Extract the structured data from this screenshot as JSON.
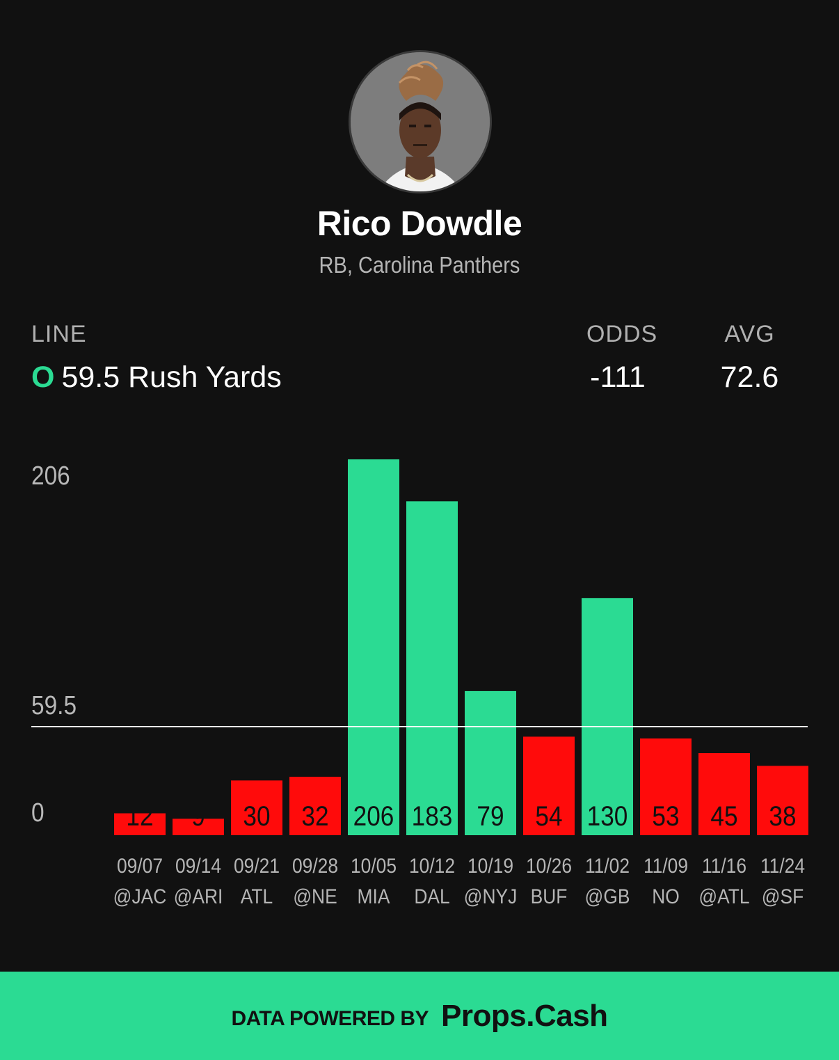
{
  "player": {
    "name": "Rico Dowdle",
    "subtitle": "RB, Carolina Panthers",
    "avatar_icon": "player-headshot"
  },
  "stats": {
    "line_label": "LINE",
    "line_direction": "O",
    "line_text": "59.5 Rush Yards",
    "odds_label": "ODDS",
    "odds_value": "-111",
    "avg_label": "AVG",
    "avg_value": "72.6"
  },
  "colors": {
    "background": "#111111",
    "over": "#2bdb93",
    "under": "#ff0b0b",
    "threshold_line": "#ffffff"
  },
  "chart_data": {
    "type": "bar",
    "title": "",
    "xlabel": "",
    "ylabel": "",
    "ylim": [
      0,
      206
    ],
    "y_ticks": [
      "206",
      "59.5",
      "0"
    ],
    "threshold": 59.5,
    "categories": [
      {
        "date": "09/07",
        "opponent": "@JAC"
      },
      {
        "date": "09/14",
        "opponent": "@ARI"
      },
      {
        "date": "09/21",
        "opponent": "ATL"
      },
      {
        "date": "09/28",
        "opponent": "@NE"
      },
      {
        "date": "10/05",
        "opponent": "MIA"
      },
      {
        "date": "10/12",
        "opponent": "DAL"
      },
      {
        "date": "10/19",
        "opponent": "@NYJ"
      },
      {
        "date": "10/26",
        "opponent": "BUF"
      },
      {
        "date": "11/02",
        "opponent": "@GB"
      },
      {
        "date": "11/09",
        "opponent": "NO"
      },
      {
        "date": "11/16",
        "opponent": "@ATL"
      },
      {
        "date": "11/24",
        "opponent": "@SF"
      }
    ],
    "values": [
      12,
      9,
      30,
      32,
      206,
      183,
      79,
      54,
      130,
      53,
      45,
      38
    ],
    "bar_labels": [
      "12",
      "9",
      "30",
      "32",
      "206",
      "183",
      "79",
      "54",
      "130",
      "53",
      "45",
      "38"
    ]
  },
  "footer": {
    "text": "DATA POWERED BY",
    "brand": "Props.Cash"
  }
}
